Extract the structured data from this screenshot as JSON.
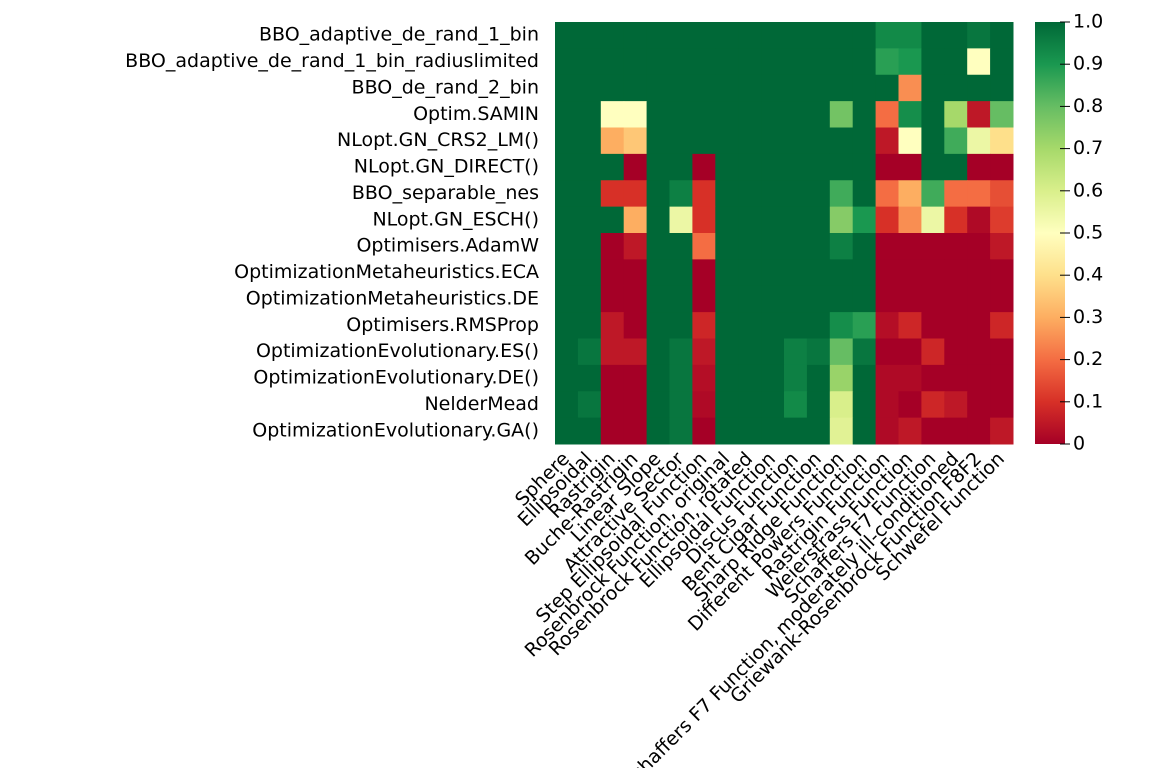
{
  "chart_data": {
    "type": "heatmap",
    "x": [
      "Sphere",
      "Ellipsoidal",
      "Rastrigin",
      "Buche-Rastrigin",
      "Linear Slope",
      "Attractive Sector",
      "Step Ellipsoidal Function",
      "Rosenbrock Function, original",
      "Rosenbrock Function, rotated",
      "Ellipsoidal Function",
      "Discus Function",
      "Bent Cigar Function",
      "Sharp Ridge Function",
      "Different Powers Function",
      "Rastrigin Function",
      "Weierstrass Function",
      "Schaffers F7 Function",
      "Schaffers F7 Function, moderately ill-conditioned",
      "Griewank-Rosenbrock Function F8F2",
      "Schwefel Function"
    ],
    "y": [
      "BBO_adaptive_de_rand_1_bin",
      "BBO_adaptive_de_rand_1_bin_radiuslimited",
      "BBO_de_rand_2_bin",
      "Optim.SAMIN",
      "NLopt.GN_CRS2_LM()",
      "NLopt.GN_DIRECT()",
      "BBO_separable_nes",
      "NLopt.GN_ESCH()",
      "Optimisers.AdamW",
      "OptimizationMetaheuristics.ECA",
      "OptimizationMetaheuristics.DE",
      "Optimisers.RMSProp",
      "OptimizationEvolutionary.ES()",
      "OptimizationEvolutionary.DE()",
      "NelderMead",
      "OptimizationEvolutionary.GA()"
    ],
    "z": [
      [
        1,
        1,
        1,
        1,
        1,
        1,
        1,
        1,
        1,
        1,
        1,
        1,
        1,
        1,
        0.93,
        0.93,
        1,
        1,
        0.97,
        1
      ],
      [
        1,
        1,
        1,
        1,
        1,
        1,
        1,
        1,
        1,
        1,
        1,
        1,
        1,
        1,
        0.88,
        0.9,
        1,
        1,
        0.5,
        1
      ],
      [
        1,
        1,
        1,
        1,
        1,
        1,
        1,
        1,
        1,
        1,
        1,
        1,
        1,
        1,
        1,
        0.25,
        1,
        1,
        1,
        1
      ],
      [
        1,
        1,
        0.5,
        0.5,
        1,
        1,
        1,
        1,
        1,
        1,
        1,
        1,
        0.78,
        1,
        0.2,
        0.92,
        1,
        0.7,
        0.05,
        0.8
      ],
      [
        1,
        1,
        0.3,
        0.35,
        1,
        1,
        1,
        1,
        1,
        1,
        1,
        1,
        1,
        1,
        0.05,
        0.5,
        1,
        0.85,
        0.55,
        0.4
      ],
      [
        1,
        1,
        1,
        0,
        1,
        1,
        0,
        1,
        1,
        1,
        1,
        1,
        1,
        1,
        0,
        0,
        1,
        1,
        0,
        0
      ],
      [
        1,
        1,
        0.1,
        0.1,
        1,
        0.95,
        0.1,
        1,
        1,
        1,
        1,
        1,
        0.85,
        1,
        0.2,
        0.3,
        0.85,
        0.2,
        0.2,
        0.15
      ],
      [
        1,
        1,
        1,
        0.3,
        1,
        0.55,
        0.1,
        1,
        1,
        1,
        1,
        1,
        0.75,
        0.9,
        0.1,
        0.25,
        0.55,
        0.1,
        0.02,
        0.12
      ],
      [
        1,
        1,
        0,
        0.05,
        1,
        1,
        0.2,
        1,
        1,
        1,
        1,
        1,
        0.95,
        1,
        0,
        0,
        0,
        0,
        0,
        0.05
      ],
      [
        1,
        1,
        0,
        0,
        1,
        1,
        0,
        1,
        1,
        1,
        1,
        1,
        1,
        1,
        0,
        0,
        0,
        0,
        0,
        0
      ],
      [
        1,
        1,
        0,
        0,
        1,
        1,
        0,
        1,
        1,
        1,
        1,
        1,
        1,
        1,
        0,
        0,
        0,
        0,
        0,
        0
      ],
      [
        1,
        1,
        0.05,
        0,
        1,
        1,
        0.08,
        1,
        1,
        1,
        1,
        1,
        0.92,
        0.88,
        0.03,
        0.08,
        0,
        0,
        0,
        0.08
      ],
      [
        1,
        0.97,
        0.05,
        0.05,
        1,
        0.97,
        0.05,
        1,
        1,
        1,
        0.95,
        0.97,
        0.8,
        0.97,
        0,
        0,
        0.08,
        0,
        0,
        0
      ],
      [
        1,
        1,
        0,
        0,
        1,
        0.97,
        0.03,
        1,
        1,
        1,
        0.95,
        1,
        0.72,
        1,
        0.02,
        0.02,
        0,
        0,
        0,
        0
      ],
      [
        1,
        0.97,
        0,
        0,
        1,
        0.97,
        0.02,
        1,
        1,
        1,
        0.93,
        1,
        0.6,
        1,
        0.02,
        0,
        0.08,
        0.05,
        0,
        0
      ],
      [
        1,
        1,
        0,
        0,
        1,
        0.97,
        0,
        1,
        1,
        1,
        1,
        1,
        0.58,
        1,
        0.02,
        0.05,
        0,
        0,
        0,
        0.05
      ]
    ],
    "colorscale": [
      "#a50026",
      "#d73027",
      "#f46d43",
      "#fdae61",
      "#fee08b",
      "#ffffbf",
      "#d9ef8b",
      "#a6d96a",
      "#66bd63",
      "#1a9850",
      "#006837"
    ],
    "zlim": [
      0,
      1
    ],
    "zticks": [
      0,
      0.1,
      0.2,
      0.3,
      0.4,
      0.5,
      0.6,
      0.7,
      0.8,
      0.9,
      {
        "value": 1,
        "label": "1.0"
      }
    ]
  }
}
